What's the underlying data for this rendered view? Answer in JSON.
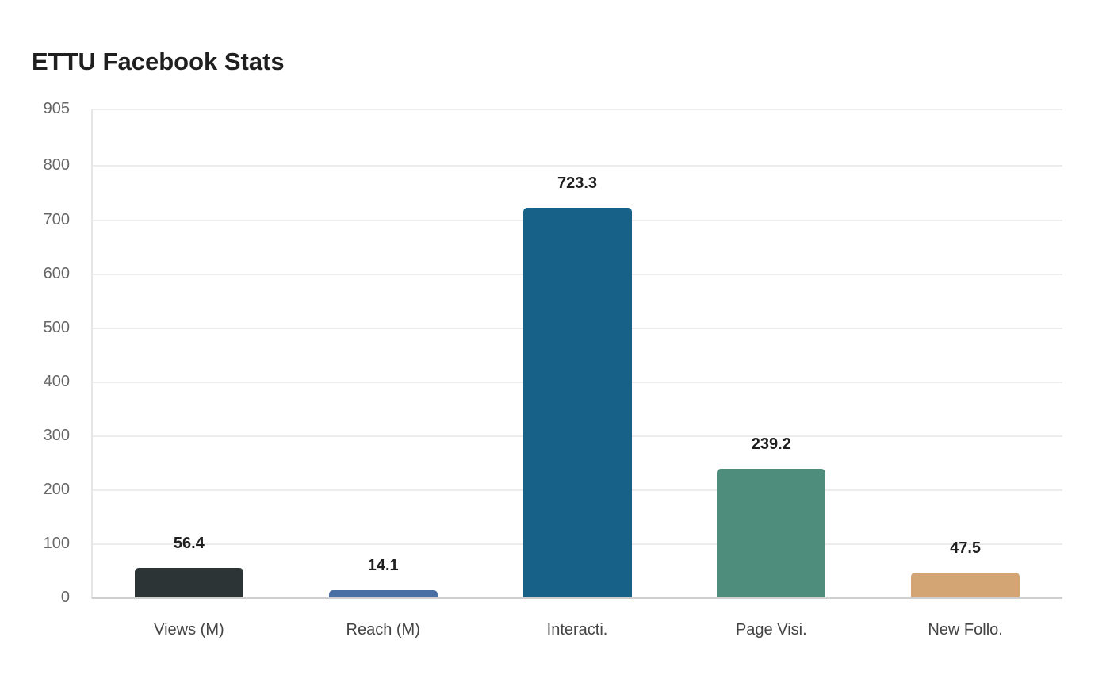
{
  "chart_data": {
    "type": "bar",
    "title": "ETTU Facebook Stats",
    "xlabel": "",
    "ylabel": "",
    "ylim": [
      0,
      905
    ],
    "yticks": [
      0,
      100,
      200,
      300,
      400,
      500,
      600,
      700,
      800,
      905
    ],
    "grid": true,
    "legend": null,
    "categories": [
      "Views (M)",
      "Reach (M)",
      "Interacti.",
      "Page Visi.",
      "New Follo."
    ],
    "values": [
      56.4,
      14.1,
      723.3,
      239.2,
      47.5
    ],
    "value_labels": [
      "56.4",
      "14.1",
      "723.3",
      "239.2",
      "47.5"
    ],
    "colors": [
      "#2d3436",
      "#4a6fa5",
      "#176087",
      "#4e8c7b",
      "#d4a574"
    ]
  }
}
